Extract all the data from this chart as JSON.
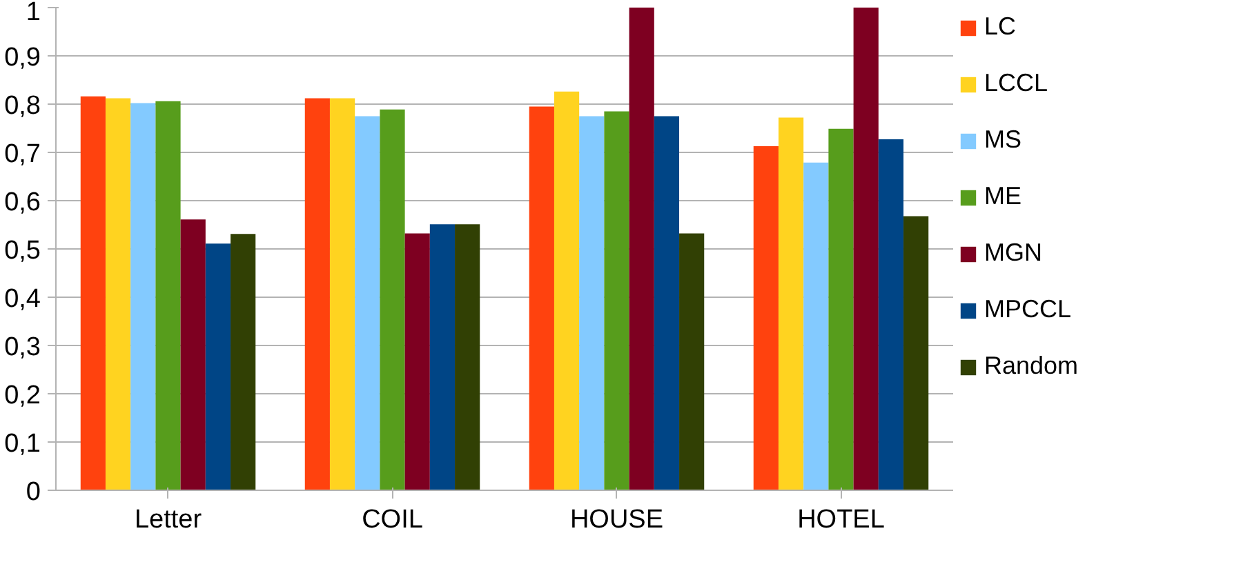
{
  "chart_data": {
    "type": "bar",
    "categories": [
      "Letter",
      "COIL",
      "HOUSE",
      "HOTEL"
    ],
    "series": [
      {
        "name": "LC",
        "color": "#ff420e",
        "values": [
          0.816,
          0.812,
          0.795,
          0.713
        ]
      },
      {
        "name": "LCCL",
        "color": "#ffd320",
        "values": [
          0.812,
          0.812,
          0.826,
          0.772
        ]
      },
      {
        "name": "MS",
        "color": "#83caff",
        "values": [
          0.802,
          0.775,
          0.775,
          0.679
        ]
      },
      {
        "name": "ME",
        "color": "#579d1c",
        "values": [
          0.806,
          0.789,
          0.785,
          0.749
        ]
      },
      {
        "name": "MGN",
        "color": "#7e0021",
        "values": [
          0.561,
          0.532,
          1.0,
          1.0
        ]
      },
      {
        "name": "MPCCL",
        "color": "#004586",
        "values": [
          0.511,
          0.551,
          0.775,
          0.727
        ]
      },
      {
        "name": "Random",
        "color": "#314004",
        "values": [
          0.531,
          0.551,
          0.532,
          0.568
        ]
      }
    ],
    "ylim": [
      0,
      1
    ],
    "yticks": [
      0,
      {
        "value": 0.1,
        "label": "0,1"
      },
      {
        "value": 0.2,
        "label": "0,2"
      },
      {
        "value": 0.3,
        "label": "0,3"
      },
      {
        "value": 0.4,
        "label": "0,4"
      },
      {
        "value": 0.5,
        "label": "0,5"
      },
      {
        "value": 0.6,
        "label": "0,6"
      },
      {
        "value": 0.7,
        "label": "0,7"
      },
      {
        "value": 0.8,
        "label": "0,8"
      },
      {
        "value": 0.9,
        "label": "0,9"
      },
      1
    ],
    "grid": "y",
    "legend": "right"
  }
}
